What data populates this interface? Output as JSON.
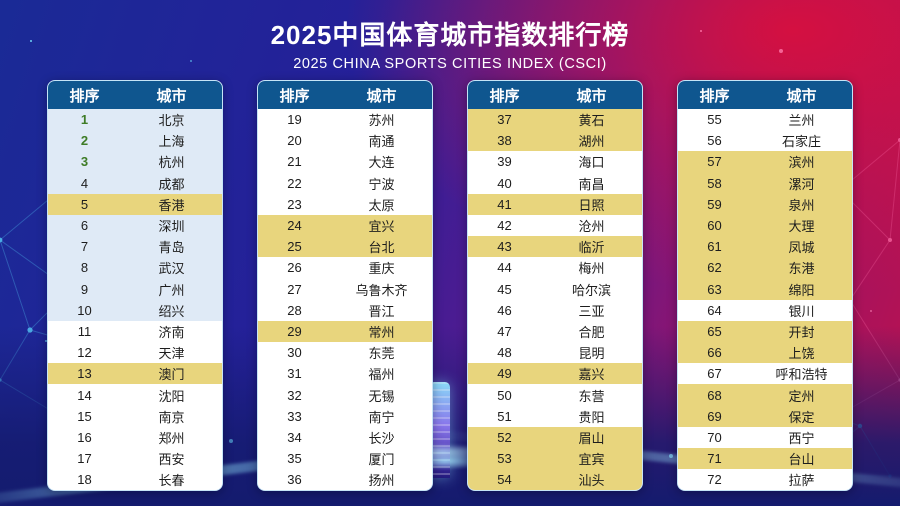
{
  "title": {
    "zh": "2025中国体育城市指数排行榜",
    "en": "2025 CHINA SPORTS CITIES INDEX (CSCI)"
  },
  "table_headers": {
    "rank": "排序",
    "city": "城市"
  },
  "colors": {
    "header_bg": "#0f568f",
    "row_white": "#ffffff",
    "row_blue": "#dfeaf6",
    "row_yellow": "#e8d57d",
    "rank_top3_green": "#3e7c26",
    "bg_left_blue": "#1a2a96",
    "bg_right_crimson": "#c4113f"
  },
  "chart_data": {
    "type": "table",
    "title": "2025中国体育城市指数排行榜",
    "subtitle": "2025 CHINA SPORTS CITIES INDEX (CSCI)",
    "column_headers": [
      "排序",
      "城市"
    ],
    "highlight_legend": {
      "blue": "light-blue row background",
      "yellow": "yellow row background",
      "white": "plain row background",
      "green_rank": "ranks 1-3 shown in green"
    },
    "tables": [
      {
        "rows": [
          {
            "rank": 1,
            "city": "北京",
            "highlight": "blue",
            "rank_green": true
          },
          {
            "rank": 2,
            "city": "上海",
            "highlight": "blue",
            "rank_green": true
          },
          {
            "rank": 3,
            "city": "杭州",
            "highlight": "blue",
            "rank_green": true
          },
          {
            "rank": 4,
            "city": "成都",
            "highlight": "blue"
          },
          {
            "rank": 5,
            "city": "香港",
            "highlight": "yellow"
          },
          {
            "rank": 6,
            "city": "深圳",
            "highlight": "blue"
          },
          {
            "rank": 7,
            "city": "青岛",
            "highlight": "blue"
          },
          {
            "rank": 8,
            "city": "武汉",
            "highlight": "blue"
          },
          {
            "rank": 9,
            "city": "广州",
            "highlight": "blue"
          },
          {
            "rank": 10,
            "city": "绍兴",
            "highlight": "blue"
          },
          {
            "rank": 11,
            "city": "济南",
            "highlight": "white"
          },
          {
            "rank": 12,
            "city": "天津",
            "highlight": "white"
          },
          {
            "rank": 13,
            "city": "澳门",
            "highlight": "yellow"
          },
          {
            "rank": 14,
            "city": "沈阳",
            "highlight": "white"
          },
          {
            "rank": 15,
            "city": "南京",
            "highlight": "white"
          },
          {
            "rank": 16,
            "city": "郑州",
            "highlight": "white"
          },
          {
            "rank": 17,
            "city": "西安",
            "highlight": "white"
          },
          {
            "rank": 18,
            "city": "长春",
            "highlight": "white"
          }
        ]
      },
      {
        "rows": [
          {
            "rank": 19,
            "city": "苏州",
            "highlight": "white"
          },
          {
            "rank": 20,
            "city": "南通",
            "highlight": "white"
          },
          {
            "rank": 21,
            "city": "大连",
            "highlight": "white"
          },
          {
            "rank": 22,
            "city": "宁波",
            "highlight": "white"
          },
          {
            "rank": 23,
            "city": "太原",
            "highlight": "white"
          },
          {
            "rank": 24,
            "city": "宜兴",
            "highlight": "yellow"
          },
          {
            "rank": 25,
            "city": "台北",
            "highlight": "yellow"
          },
          {
            "rank": 26,
            "city": "重庆",
            "highlight": "white"
          },
          {
            "rank": 27,
            "city": "乌鲁木齐",
            "highlight": "white"
          },
          {
            "rank": 28,
            "city": "晋江",
            "highlight": "white"
          },
          {
            "rank": 29,
            "city": "常州",
            "highlight": "yellow"
          },
          {
            "rank": 30,
            "city": "东莞",
            "highlight": "white"
          },
          {
            "rank": 31,
            "city": "福州",
            "highlight": "white"
          },
          {
            "rank": 32,
            "city": "无锡",
            "highlight": "white"
          },
          {
            "rank": 33,
            "city": "南宁",
            "highlight": "white"
          },
          {
            "rank": 34,
            "city": "长沙",
            "highlight": "white"
          },
          {
            "rank": 35,
            "city": "厦门",
            "highlight": "white"
          },
          {
            "rank": 36,
            "city": "扬州",
            "highlight": "white"
          }
        ]
      },
      {
        "rows": [
          {
            "rank": 37,
            "city": "黄石",
            "highlight": "yellow"
          },
          {
            "rank": 38,
            "city": "湖州",
            "highlight": "yellow"
          },
          {
            "rank": 39,
            "city": "海口",
            "highlight": "white"
          },
          {
            "rank": 40,
            "city": "南昌",
            "highlight": "white"
          },
          {
            "rank": 41,
            "city": "日照",
            "highlight": "yellow"
          },
          {
            "rank": 42,
            "city": "沧州",
            "highlight": "white"
          },
          {
            "rank": 43,
            "city": "临沂",
            "highlight": "yellow"
          },
          {
            "rank": 44,
            "city": "梅州",
            "highlight": "white"
          },
          {
            "rank": 45,
            "city": "哈尔滨",
            "highlight": "white"
          },
          {
            "rank": 46,
            "city": "三亚",
            "highlight": "white"
          },
          {
            "rank": 47,
            "city": "合肥",
            "highlight": "white"
          },
          {
            "rank": 48,
            "city": "昆明",
            "highlight": "white"
          },
          {
            "rank": 49,
            "city": "嘉兴",
            "highlight": "yellow"
          },
          {
            "rank": 50,
            "city": "东营",
            "highlight": "white"
          },
          {
            "rank": 51,
            "city": "贵阳",
            "highlight": "white"
          },
          {
            "rank": 52,
            "city": "眉山",
            "highlight": "yellow"
          },
          {
            "rank": 53,
            "city": "宜宾",
            "highlight": "yellow"
          },
          {
            "rank": 54,
            "city": "汕头",
            "highlight": "yellow"
          }
        ]
      },
      {
        "rows": [
          {
            "rank": 55,
            "city": "兰州",
            "highlight": "white"
          },
          {
            "rank": 56,
            "city": "石家庄",
            "highlight": "white"
          },
          {
            "rank": 57,
            "city": "滨州",
            "highlight": "yellow"
          },
          {
            "rank": 58,
            "city": "漯河",
            "highlight": "yellow"
          },
          {
            "rank": 59,
            "city": "泉州",
            "highlight": "yellow"
          },
          {
            "rank": 60,
            "city": "大理",
            "highlight": "yellow"
          },
          {
            "rank": 61,
            "city": "凤城",
            "highlight": "yellow"
          },
          {
            "rank": 62,
            "city": "东港",
            "highlight": "yellow"
          },
          {
            "rank": 63,
            "city": "绵阳",
            "highlight": "yellow"
          },
          {
            "rank": 64,
            "city": "银川",
            "highlight": "white"
          },
          {
            "rank": 65,
            "city": "开封",
            "highlight": "yellow"
          },
          {
            "rank": 66,
            "city": "上饶",
            "highlight": "yellow"
          },
          {
            "rank": 67,
            "city": "呼和浩特",
            "highlight": "white"
          },
          {
            "rank": 68,
            "city": "定州",
            "highlight": "yellow"
          },
          {
            "rank": 69,
            "city": "保定",
            "highlight": "yellow"
          },
          {
            "rank": 70,
            "city": "西宁",
            "highlight": "white"
          },
          {
            "rank": 71,
            "city": "台山",
            "highlight": "yellow"
          },
          {
            "rank": 72,
            "city": "拉萨",
            "highlight": "white"
          }
        ]
      }
    ]
  }
}
